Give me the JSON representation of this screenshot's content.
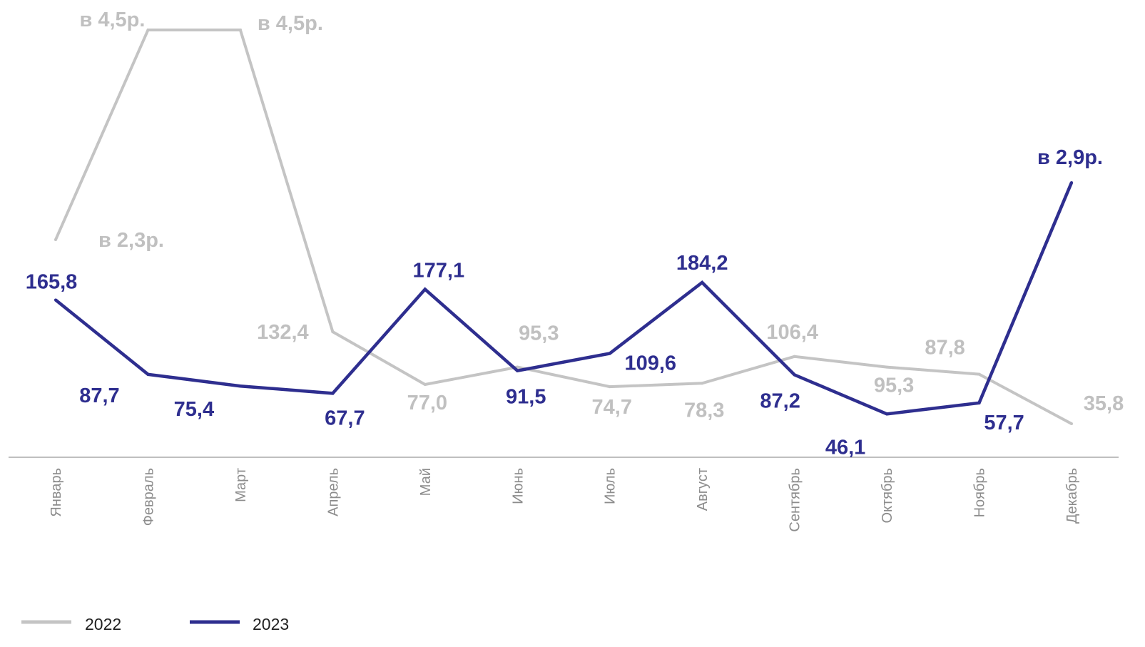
{
  "chart_data": {
    "type": "line",
    "title": "",
    "xlabel": "",
    "ylabel": "",
    "categories": [
      "Январь",
      "Февраль",
      "Март",
      "Апрель",
      "Май",
      "Июнь",
      "Июль",
      "Август",
      "Сентябрь",
      "Октябрь",
      "Ноябрь",
      "Декабрь"
    ],
    "series": [
      {
        "name": "2022",
        "color": "#c4c4c4",
        "values": [
          230,
          450,
          450,
          132.4,
          77.0,
          95.3,
          74.7,
          78.3,
          106.4,
          95.3,
          87.8,
          35.8
        ],
        "labels": [
          "в 2,3р.",
          "в 4,5р.",
          "в 4,5р.",
          "132,4",
          "77,0",
          "95,3",
          "74,7",
          "78,3",
          "106,4",
          "95,3",
          "87,8",
          "35,8"
        ]
      },
      {
        "name": "2023",
        "color": "#2e2e8f",
        "values": [
          165.8,
          87.7,
          75.4,
          67.7,
          177.1,
          91.5,
          109.6,
          184.2,
          87.2,
          46.1,
          57.7,
          290
        ],
        "labels": [
          "165,8",
          "87,7",
          "75,4",
          "67,7",
          "177,1",
          "91,5",
          "109,6",
          "184,2",
          "87,2",
          "46,1",
          "57,7",
          "в 2,9р."
        ]
      }
    ],
    "ylim": [
      0,
      470
    ],
    "grid": false,
    "legend": "bottom-left"
  }
}
